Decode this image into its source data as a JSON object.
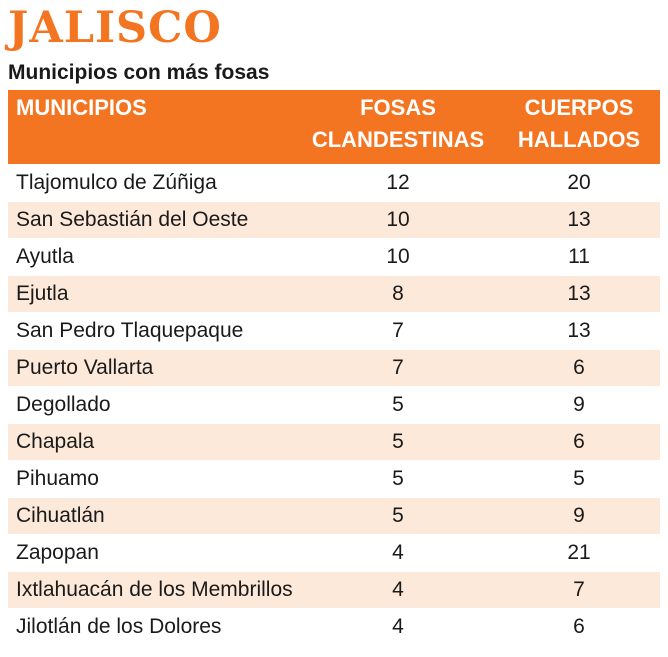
{
  "header": {
    "title": "JALISCO",
    "subtitle": "Municipios con más fosas"
  },
  "colors": {
    "accent": "#f47521",
    "stripe": "#fde9d9"
  },
  "chart_data": {
    "type": "table",
    "columns": [
      "MUNICIPIOS",
      "FOSAS CLANDESTINAS",
      "CUERPOS HALLADOS"
    ],
    "rows": [
      [
        "Tlajomulco de Zúñiga",
        12,
        20
      ],
      [
        "San Sebastián del Oeste",
        10,
        13
      ],
      [
        "Ayutla",
        10,
        11
      ],
      [
        "Ejutla",
        8,
        13
      ],
      [
        "San Pedro Tlaquepaque",
        7,
        13
      ],
      [
        "Puerto Vallarta",
        7,
        6
      ],
      [
        "Degollado",
        5,
        9
      ],
      [
        "Chapala",
        5,
        6
      ],
      [
        "Pihuamo",
        5,
        5
      ],
      [
        "Cihuatlán",
        5,
        9
      ],
      [
        "Zapopan",
        4,
        21
      ],
      [
        "Ixtlahuacán de los Membrillos",
        4,
        7
      ],
      [
        "Jilotlán de los Dolores",
        4,
        6
      ]
    ]
  }
}
